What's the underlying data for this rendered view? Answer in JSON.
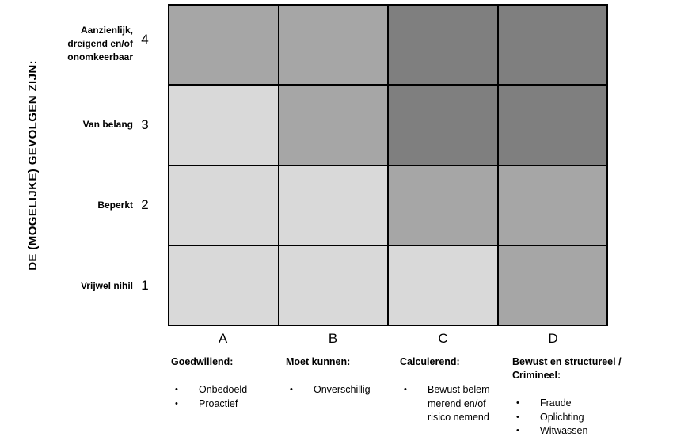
{
  "y_axis": {
    "label": "DE (MOGELIJKE) GEVOLGEN ZIJN:"
  },
  "icons": {
    "bullet": "•"
  },
  "matrix": {
    "palette": {
      "light": "#d9d9d9",
      "medium": "#a6a6a6",
      "dark": "#7f7f7f",
      "line": "#000000"
    },
    "rows": [
      {
        "label": "Aanzienlijk, dreigend en/of onomkeerbaar",
        "value": "4",
        "cells": [
          "medium",
          "medium",
          "dark",
          "dark"
        ]
      },
      {
        "label": "Van belang",
        "value": "3",
        "cells": [
          "light",
          "medium",
          "dark",
          "dark"
        ]
      },
      {
        "label": "Beperkt",
        "value": "2",
        "cells": [
          "light",
          "light",
          "medium",
          "medium"
        ]
      },
      {
        "label": "Vrijwel nihil",
        "value": "1",
        "cells": [
          "light",
          "light",
          "light",
          "medium"
        ]
      }
    ],
    "columns": [
      {
        "letter": "A",
        "title": "Goedwillend:",
        "bullets": [
          "Onbedoeld",
          "Proactief"
        ]
      },
      {
        "letter": "B",
        "title": "Moet kunnen:",
        "bullets": [
          "Onverschillig"
        ]
      },
      {
        "letter": "C",
        "title": "Calculerend:",
        "bullets": [
          "Bewust belem-merend en/of risico nemend"
        ]
      },
      {
        "letter": "D",
        "title": "Bewust en structureel / Crimineel:",
        "bullets": [
          "Fraude",
          "Oplichting",
          "Witwassen"
        ]
      }
    ]
  },
  "chart_data": {
    "type": "heatmap",
    "title": "",
    "ylabel": "DE (MOGELIJKE) GEVOLGEN ZIJN:",
    "x_categories": [
      "A",
      "B",
      "C",
      "D"
    ],
    "x_category_titles": [
      "Goedwillend",
      "Moet kunnen",
      "Calculerend",
      "Bewust en structureel / Crimineel"
    ],
    "y_categories": [
      "4",
      "3",
      "2",
      "1"
    ],
    "y_category_labels": [
      "Aanzienlijk, dreigend en/of onomkeerbaar",
      "Van belang",
      "Beperkt",
      "Vrijwel nihil"
    ],
    "values_rows_top_to_bottom": [
      [
        2,
        2,
        3,
        3
      ],
      [
        1,
        2,
        3,
        3
      ],
      [
        1,
        1,
        2,
        2
      ],
      [
        1,
        1,
        1,
        2
      ]
    ],
    "value_scale": {
      "1": "light gray #d9d9d9",
      "2": "medium gray #a6a6a6",
      "3": "dark gray #7f7f7f"
    },
    "grid": true,
    "legend": false
  }
}
